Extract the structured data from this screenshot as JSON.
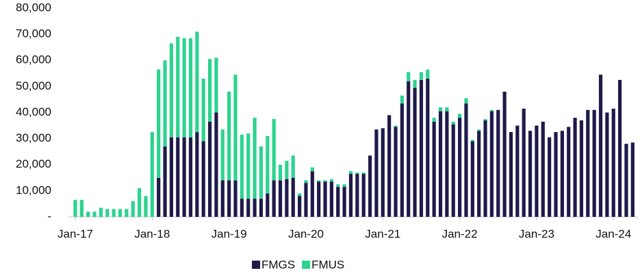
{
  "chart_data": {
    "type": "stacked_bar",
    "categories": [
      "Jan-17",
      null,
      null,
      null,
      null,
      null,
      null,
      null,
      null,
      null,
      null,
      null,
      "Jan-18",
      null,
      null,
      null,
      null,
      null,
      null,
      null,
      null,
      null,
      null,
      null,
      "Jan-19",
      null,
      null,
      null,
      null,
      null,
      null,
      null,
      null,
      null,
      null,
      null,
      "Jan-20",
      null,
      null,
      null,
      null,
      null,
      null,
      null,
      null,
      null,
      null,
      null,
      "Jan-21",
      null,
      null,
      null,
      null,
      null,
      null,
      null,
      null,
      null,
      null,
      null,
      "Jan-22",
      null,
      null,
      null,
      null,
      null,
      null,
      null,
      null,
      null,
      null,
      null,
      "Jan-23",
      null,
      null,
      null,
      null,
      null,
      null,
      null,
      null,
      null,
      null,
      null,
      "Jan-24",
      null,
      null,
      null
    ],
    "series": [
      {
        "name": "FMGS",
        "color": "#1e1b4b",
        "values": [
          0,
          0,
          0,
          0,
          0,
          0,
          0,
          0,
          0,
          0,
          0,
          0,
          0,
          15000,
          27000,
          30500,
          30500,
          30500,
          30500,
          32500,
          29000,
          36500,
          40000,
          14000,
          14000,
          14000,
          7000,
          7000,
          7000,
          7000,
          9000,
          14000,
          14000,
          14500,
          15000,
          8000,
          13000,
          17500,
          13500,
          13500,
          13500,
          11500,
          11500,
          16500,
          16500,
          16500,
          23500,
          33500,
          34000,
          39000,
          34500,
          43500,
          52000,
          49500,
          52500,
          53000,
          36500,
          40500,
          40500,
          35500,
          38000,
          43500,
          29000,
          33000,
          37000,
          40500,
          41000,
          48000,
          32500,
          35000,
          41500,
          33000,
          35000,
          36500,
          30500,
          32500,
          33000,
          34500,
          38000,
          37000,
          41000,
          41000,
          54500,
          40000,
          41500,
          52500,
          28000,
          28500
        ]
      },
      {
        "name": "FMUS",
        "color": "#2dd38f",
        "values": [
          6500,
          6500,
          2000,
          2000,
          3500,
          3000,
          3000,
          3000,
          3000,
          6000,
          11000,
          8000,
          32500,
          41500,
          33000,
          36000,
          38500,
          38000,
          38000,
          38500,
          24000,
          24000,
          21000,
          19500,
          34000,
          40500,
          24500,
          25000,
          31000,
          20000,
          22000,
          23500,
          6000,
          7000,
          8500,
          1000,
          1000,
          1500,
          500,
          500,
          1000,
          1000,
          1000,
          1000,
          500,
          500,
          0,
          0,
          0,
          0,
          500,
          3000,
          3500,
          3000,
          3000,
          3500,
          1500,
          1500,
          1500,
          1000,
          1500,
          2000,
          500,
          500,
          500,
          500,
          0,
          0,
          0,
          0,
          0,
          0,
          0,
          0,
          0,
          0,
          0,
          0,
          0,
          0,
          0,
          0,
          0,
          0,
          0,
          0,
          0,
          0
        ]
      }
    ],
    "ylim": [
      0,
      80000
    ],
    "yticks": [
      {
        "value": 0,
        "label": "-"
      },
      {
        "value": 10000,
        "label": "10,000"
      },
      {
        "value": 20000,
        "label": "20,000"
      },
      {
        "value": 30000,
        "label": "30,000"
      },
      {
        "value": 40000,
        "label": "40,000"
      },
      {
        "value": 50000,
        "label": "50,000"
      },
      {
        "value": 60000,
        "label": "60,000"
      },
      {
        "value": 70000,
        "label": "70,000"
      },
      {
        "value": 80000,
        "label": "80,000"
      }
    ],
    "legend": "bottom",
    "grid": false
  }
}
